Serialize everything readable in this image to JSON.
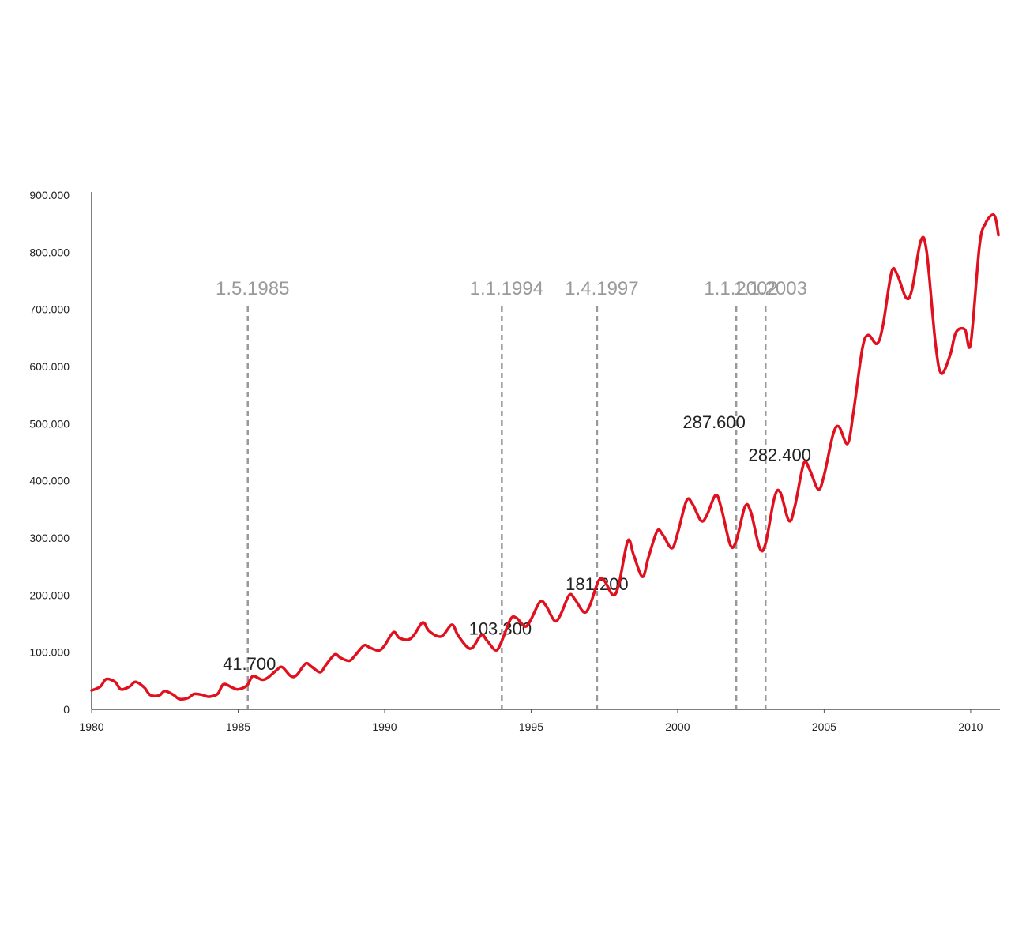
{
  "colors": {
    "series": "#e0101e",
    "axis": "#555555",
    "marker_line": "#999999",
    "event_label": "#9a9a9a",
    "value_label": "#222222"
  },
  "chart_data": {
    "type": "line",
    "title": "",
    "xlabel": "",
    "ylabel": "",
    "xlim": [
      1980,
      2011
    ],
    "ylim": [
      0,
      900000
    ],
    "grid": false,
    "legend": "none",
    "y_ticks": [
      {
        "value": 0,
        "label": "0"
      },
      {
        "value": 100000,
        "label": "100.000"
      },
      {
        "value": 200000,
        "label": "200.000"
      },
      {
        "value": 300000,
        "label": "300.000"
      },
      {
        "value": 400000,
        "label": "400.000"
      },
      {
        "value": 500000,
        "label": "500.000"
      },
      {
        "value": 600000,
        "label": "600.000"
      },
      {
        "value": 700000,
        "label": "700.000"
      },
      {
        "value": 800000,
        "label": "800.000"
      },
      {
        "value": 900000,
        "label": "900.000"
      }
    ],
    "x_ticks": [
      {
        "value": 1980,
        "label": "1980"
      },
      {
        "value": 1985,
        "label": "1985"
      },
      {
        "value": 1990,
        "label": "1990"
      },
      {
        "value": 1995,
        "label": "1995"
      },
      {
        "value": 2000,
        "label": "2000"
      },
      {
        "value": 2005,
        "label": "2005"
      },
      {
        "value": 2010,
        "label": "2010"
      }
    ],
    "series": [
      {
        "x": [
          1980.0,
          1980.3,
          1980.5,
          1980.8,
          1981.0,
          1981.3,
          1981.5,
          1981.8,
          1982.0,
          1982.3,
          1982.5,
          1982.8,
          1983.0,
          1983.3,
          1983.5,
          1983.8,
          1984.0,
          1984.3,
          1984.5,
          1984.8,
          1985.0,
          1985.3,
          1985.5,
          1985.8,
          1986.0,
          1986.3,
          1986.5,
          1986.8,
          1987.0,
          1987.3,
          1987.5,
          1987.8,
          1988.0,
          1988.3,
          1988.5,
          1988.8,
          1989.0,
          1989.3,
          1989.5,
          1989.8,
          1990.0,
          1990.3,
          1990.5,
          1990.8,
          1991.0,
          1991.3,
          1991.5,
          1991.8,
          1992.0,
          1992.3,
          1992.5,
          1992.8,
          1993.0,
          1993.3,
          1993.5,
          1993.8,
          1994.0,
          1994.3,
          1994.5,
          1994.8,
          1995.0,
          1995.3,
          1995.5,
          1995.8,
          1996.0,
          1996.3,
          1996.5,
          1996.8,
          1997.0,
          1997.3,
          1997.5,
          1997.8,
          1998.0,
          1998.3,
          1998.5,
          1998.8,
          1999.0,
          1999.3,
          1999.5,
          1999.8,
          2000.0,
          2000.3,
          2000.5,
          2000.8,
          2001.0,
          2001.3,
          2001.5,
          2001.8,
          2002.0,
          2002.3,
          2002.5,
          2002.8,
          2003.0,
          2003.3,
          2003.5,
          2003.8,
          2004.0,
          2004.3,
          2004.5,
          2004.8,
          2005.0,
          2005.3,
          2005.5,
          2005.8,
          2006.0,
          2006.3,
          2006.5,
          2006.8,
          2007.0,
          2007.3,
          2007.5,
          2007.8,
          2008.0,
          2008.3,
          2008.5,
          2008.8,
          2009.0,
          2009.3,
          2009.5,
          2009.8,
          2010.0,
          2010.3,
          2010.5,
          2010.8,
          2010.95
        ],
        "values": [
          33000,
          40000,
          53000,
          48000,
          35000,
          40000,
          48000,
          38000,
          25000,
          24000,
          32000,
          25000,
          18000,
          20000,
          27000,
          25000,
          22000,
          27000,
          44000,
          38000,
          35000,
          41700,
          58000,
          52000,
          55000,
          68000,
          74000,
          58000,
          60000,
          80000,
          75000,
          65000,
          78000,
          96000,
          90000,
          85000,
          95000,
          112000,
          108000,
          103000,
          112000,
          135000,
          125000,
          122000,
          130000,
          152000,
          138000,
          128000,
          130000,
          148000,
          130000,
          110000,
          108000,
          130000,
          120000,
          103300,
          120000,
          158000,
          160000,
          145000,
          158000,
          188000,
          182000,
          155000,
          165000,
          200000,
          192000,
          170000,
          181200,
          225000,
          225000,
          200000,
          220000,
          295000,
          270000,
          232000,
          265000,
          312000,
          305000,
          282000,
          308000,
          365000,
          360000,
          330000,
          340000,
          375000,
          350000,
          287600,
          295000,
          355000,
          345000,
          282400,
          290000,
          370000,
          380000,
          330000,
          355000,
          430000,
          420000,
          385000,
          410000,
          480000,
          495000,
          465000,
          520000,
          630000,
          655000,
          640000,
          670000,
          765000,
          760000,
          720000,
          735000,
          820000,
          800000,
          640000,
          588000,
          620000,
          660000,
          665000,
          640000,
          810000,
          850000,
          865000,
          830000
        ]
      }
    ],
    "markers": [
      {
        "x": 1985.33,
        "label": "1.5.1985",
        "value": 41700,
        "value_label": "41.700"
      },
      {
        "x": 1994.0,
        "label": "1.1.1994",
        "value": 103300,
        "value_label": "103.300"
      },
      {
        "x": 1997.25,
        "label": "1.4.1997",
        "value": 181200,
        "value_label": "181.200"
      },
      {
        "x": 2002.0,
        "label": "1.1.2002",
        "value": 287600,
        "value_label": "287.600"
      },
      {
        "x": 2003.0,
        "label": "1.1.2003",
        "value": 282400,
        "value_label": "282.400"
      }
    ]
  }
}
